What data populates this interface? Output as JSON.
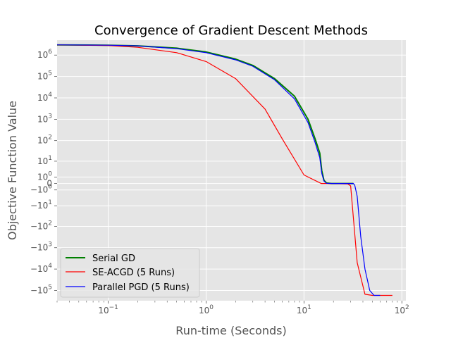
{
  "chart_data": {
    "type": "line",
    "title": "Convergence of Gradient Descent Methods",
    "xlabel": "Run-time (Seconds)",
    "ylabel": "Objective Function Value",
    "xscale": "log",
    "yscale": "symlog",
    "xlim": [
      0.03,
      110
    ],
    "ylim": [
      -300000,
      5000000
    ],
    "grid": true,
    "legend_position": "lower-left",
    "x_ticks": [
      {
        "value": 0.1,
        "base": "10",
        "exp": "−1"
      },
      {
        "value": 1,
        "base": "10",
        "exp": "0"
      },
      {
        "value": 10,
        "base": "10",
        "exp": "1"
      },
      {
        "value": 100,
        "base": "10",
        "exp": "2"
      }
    ],
    "y_ticks": [
      {
        "value": 1000000,
        "base": "10",
        "exp": "6"
      },
      {
        "value": 100000,
        "base": "10",
        "exp": "5"
      },
      {
        "value": 10000,
        "base": "10",
        "exp": "4"
      },
      {
        "value": 1000,
        "base": "10",
        "exp": "3"
      },
      {
        "value": 100,
        "base": "10",
        "exp": "2"
      },
      {
        "value": 10,
        "base": "10",
        "exp": "1"
      },
      {
        "value": 1,
        "base": "10",
        "exp": "0"
      },
      {
        "value": 0,
        "base": "0",
        "exp": ""
      },
      {
        "value": -1,
        "base": "−10",
        "exp": "0"
      },
      {
        "value": -10,
        "base": "−10",
        "exp": "1"
      },
      {
        "value": -100,
        "base": "−10",
        "exp": "2"
      },
      {
        "value": -1000,
        "base": "−10",
        "exp": "3"
      },
      {
        "value": -10000,
        "base": "−10",
        "exp": "4"
      },
      {
        "value": -100000,
        "base": "−10",
        "exp": "5"
      }
    ],
    "series": [
      {
        "name": "Serial GD",
        "color": "#008000",
        "x": [
          0.03,
          0.1,
          0.2,
          0.5,
          1,
          2,
          3,
          5,
          8,
          11,
          13,
          14.5,
          15.2,
          16,
          17,
          19,
          25,
          32
        ],
        "y": [
          3000000,
          2900000,
          2700000,
          2100000,
          1400000,
          650000,
          330000,
          80000,
          12000,
          1000,
          120,
          25,
          3,
          0.4,
          0.05,
          0,
          0,
          0
        ]
      },
      {
        "name": "SE-ACGD (5 Runs)",
        "color": "#ff0000",
        "x": [
          0.03,
          0.1,
          0.2,
          0.5,
          1,
          2,
          4,
          6,
          10,
          15,
          20,
          28,
          30,
          35,
          42,
          50,
          60,
          80
        ],
        "y": [
          3000000,
          2800000,
          2300000,
          1300000,
          500000,
          80000,
          3000,
          120,
          1.5,
          0,
          0,
          -0.05,
          -0.3,
          -5000,
          -150000,
          -170000,
          -170000,
          -170000
        ]
      },
      {
        "name": "Parallel PGD (5 Runs)",
        "color": "#0000ff",
        "x": [
          0.03,
          0.1,
          0.2,
          0.5,
          1,
          2,
          3,
          5,
          8,
          11,
          13,
          14.5,
          15.2,
          16,
          17,
          20,
          30,
          32,
          33,
          35,
          38,
          42,
          47,
          52,
          60
        ],
        "y": [
          3000000,
          2900000,
          2700000,
          2000000,
          1300000,
          600000,
          300000,
          70000,
          9000,
          700,
          80,
          15,
          2,
          0.3,
          0.02,
          0,
          0,
          0,
          -0.2,
          -3,
          -300,
          -10000,
          -100000,
          -170000,
          -170000
        ]
      }
    ]
  }
}
